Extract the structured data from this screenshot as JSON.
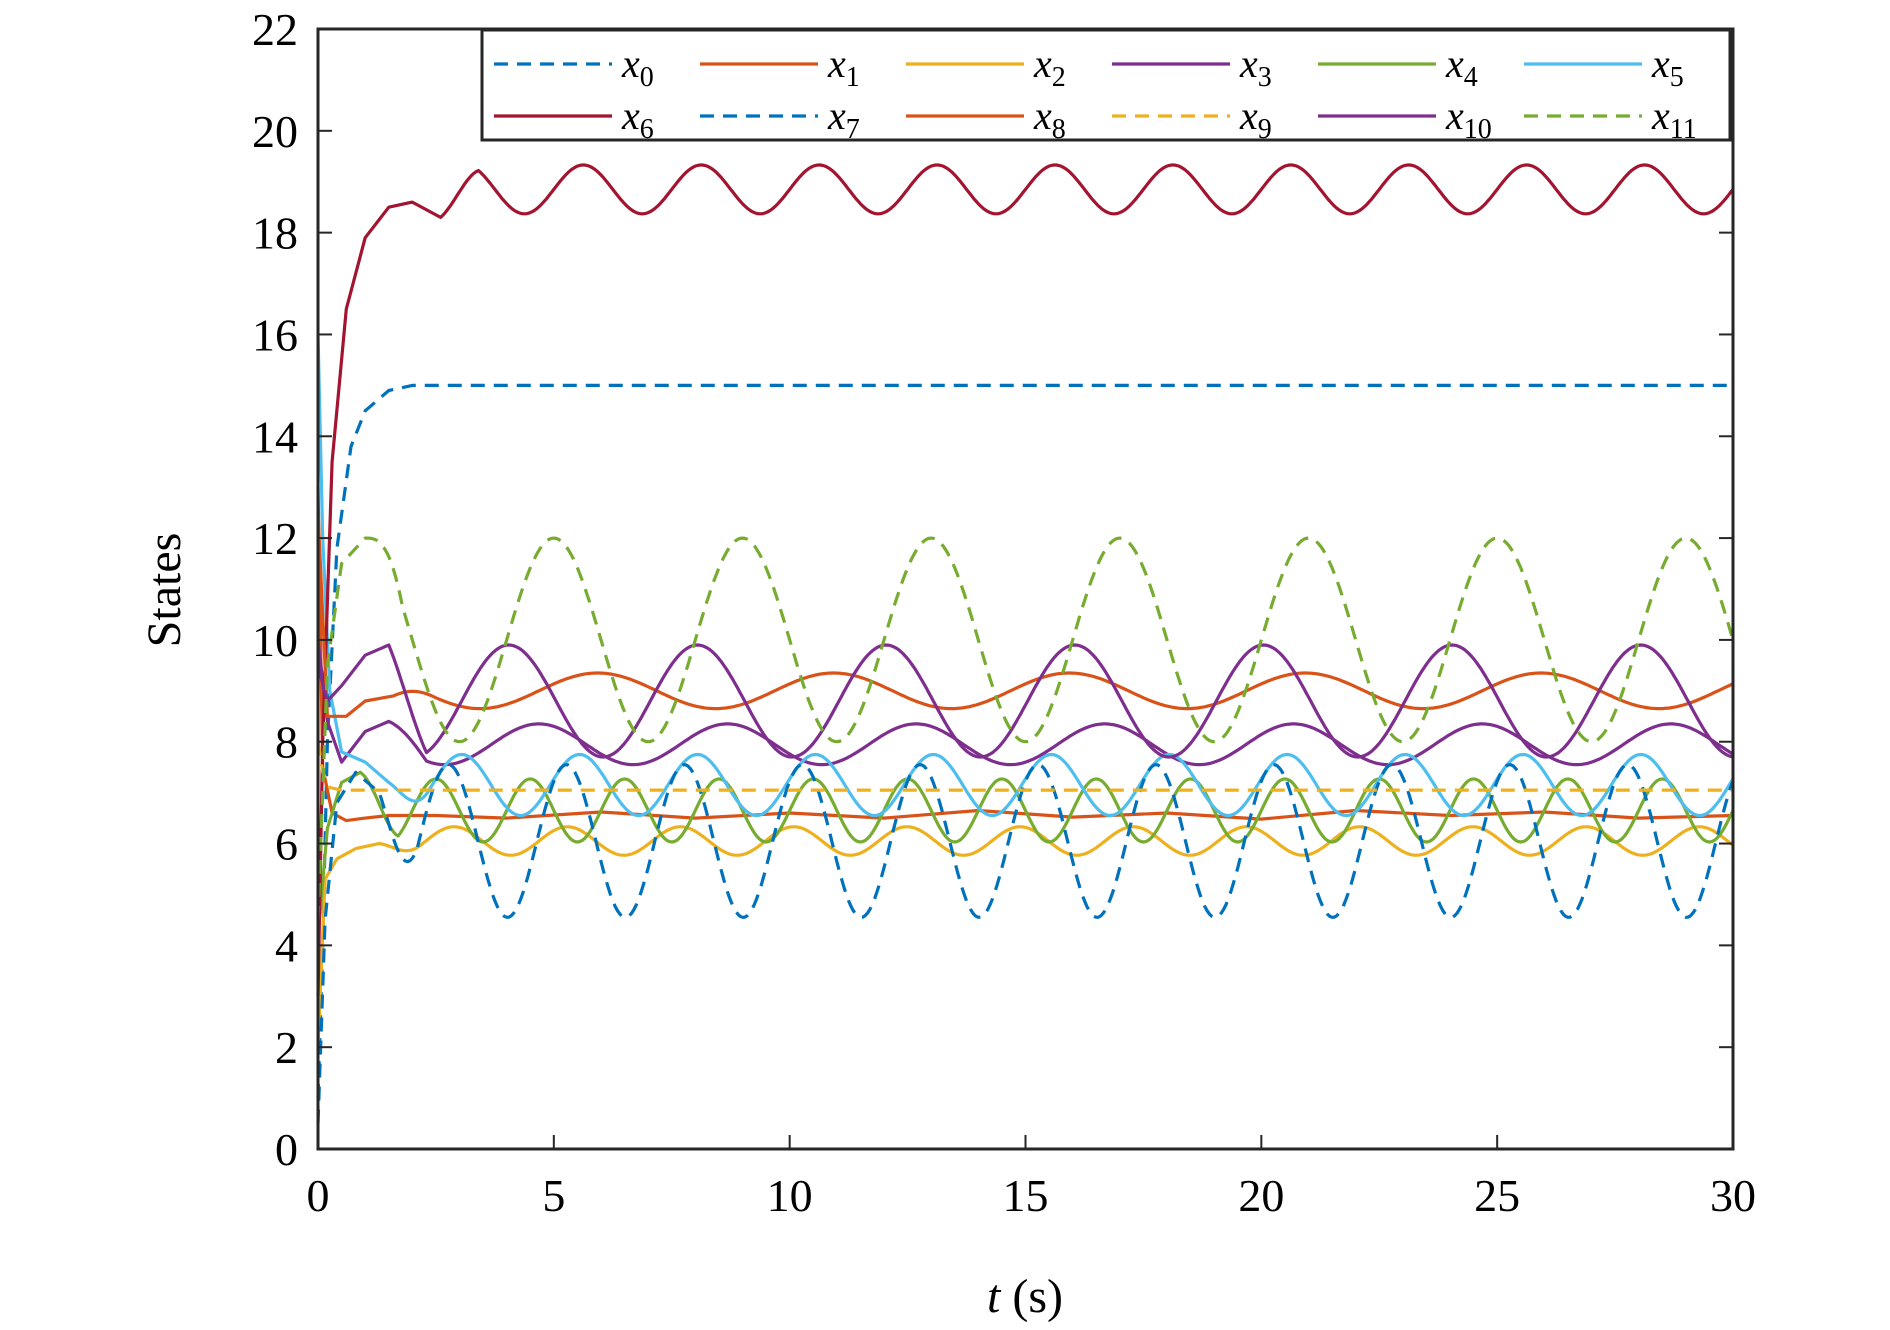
{
  "chart_data": {
    "type": "line",
    "xlabel_var": "t",
    "xlabel_unit": " (s)",
    "ylabel": "States",
    "xlim": [
      0,
      30
    ],
    "ylim": [
      0,
      22
    ],
    "xticks": [
      0,
      5,
      10,
      15,
      20,
      25,
      30
    ],
    "yticks": [
      0,
      2,
      4,
      6,
      8,
      10,
      12,
      14,
      16,
      18,
      20,
      22
    ],
    "grid": false,
    "legend_position": "top-right",
    "legend_columns": 6,
    "series": [
      {
        "name": "x",
        "sub": "0",
        "color": "#0072BD",
        "dash": true,
        "t": [
          0,
          0.1,
          0.2,
          0.4,
          0.7,
          1,
          1.5,
          2,
          3,
          5,
          10,
          20,
          30
        ],
        "y": [
          1.0,
          4.0,
          8.0,
          11.8,
          13.8,
          14.5,
          14.9,
          15.0,
          15.0,
          15.0,
          15.0,
          15.0,
          15.0
        ]
      },
      {
        "name": "x",
        "sub": "1",
        "color": "#D95319",
        "dash": false,
        "t": [
          0,
          0.1,
          0.3,
          0.6,
          1.0,
          1.5,
          2.5,
          4,
          6,
          8,
          10,
          12,
          14,
          16,
          18,
          20,
          22,
          24,
          26,
          28,
          30
        ],
        "y": [
          13.0,
          7.5,
          6.6,
          6.45,
          6.5,
          6.55,
          6.55,
          6.5,
          6.62,
          6.5,
          6.6,
          6.5,
          6.65,
          6.52,
          6.6,
          6.48,
          6.65,
          6.55,
          6.62,
          6.5,
          6.55
        ]
      },
      {
        "name": "x",
        "sub": "2",
        "color": "#EDB120",
        "dash": false,
        "osc": {
          "base": 6.05,
          "amp": 0.28,
          "per": 2.4,
          "ph": 0.3
        },
        "t": [
          0,
          0.15,
          0.4,
          0.8,
          1.3
        ],
        "y": [
          2.0,
          5.3,
          5.7,
          5.9,
          6.0
        ]
      },
      {
        "name": "x",
        "sub": "3",
        "color": "#7E2F8E",
        "dash": false,
        "osc": {
          "base": 7.95,
          "amp": 0.4,
          "per": 4.0,
          "ph": 0.5
        },
        "t": [
          0,
          0.2,
          0.5,
          1.0,
          1.5
        ],
        "y": [
          10.0,
          8.4,
          7.6,
          8.2,
          8.4
        ]
      },
      {
        "name": "x",
        "sub": "4",
        "color": "#77AC30",
        "dash": false,
        "osc": {
          "base": 6.65,
          "amp": 0.62,
          "per": 2.0,
          "ph": 0.0
        },
        "t": [
          0,
          0.2,
          0.5,
          0.9
        ],
        "y": [
          4.2,
          6.3,
          7.2,
          7.4
        ]
      },
      {
        "name": "x",
        "sub": "5",
        "color": "#4DBEEE",
        "dash": false,
        "osc": {
          "base": 7.15,
          "amp": 0.6,
          "per": 2.5,
          "ph": 0.2
        },
        "t": [
          0,
          0.1,
          0.25,
          0.5,
          1.0,
          1.5
        ],
        "y": [
          16.0,
          12.0,
          9.0,
          7.8,
          7.6,
          7.2
        ]
      },
      {
        "name": "x",
        "sub": "6",
        "color": "#A2142F",
        "dash": false,
        "osc": {
          "base": 18.85,
          "amp": 0.48,
          "per": 2.5,
          "ph": 0.0
        },
        "t": [
          0,
          0.1,
          0.3,
          0.6,
          1.0,
          1.5,
          2.0,
          2.6
        ],
        "y": [
          3.0,
          8.0,
          13.5,
          16.5,
          17.9,
          18.5,
          18.6,
          18.3
        ]
      },
      {
        "name": "x",
        "sub": "7",
        "color": "#0072BD",
        "dash": true,
        "osc": {
          "base": 6.05,
          "amp": 1.5,
          "per": 2.5,
          "ph": 0.9
        },
        "t": [
          0,
          0.15,
          0.4,
          0.8,
          1.3
        ],
        "y": [
          0.5,
          4.5,
          6.8,
          7.4,
          7.0
        ]
      },
      {
        "name": "x",
        "sub": "8",
        "color": "#D95319",
        "dash": false,
        "osc": {
          "base": 9.0,
          "amp": 0.35,
          "per": 5.0,
          "ph": 0.4
        },
        "t": [
          0,
          0.2,
          0.6,
          1.0,
          1.6
        ],
        "y": [
          12.5,
          8.5,
          8.5,
          8.8,
          8.9
        ]
      },
      {
        "name": "x",
        "sub": "9",
        "color": "#EDB120",
        "dash": true,
        "t": [
          0,
          0.1,
          0.25,
          0.5,
          1.0,
          30
        ],
        "y": [
          8.0,
          7.4,
          7.1,
          7.05,
          7.05,
          7.05
        ]
      },
      {
        "name": "x",
        "sub": "10",
        "color": "#7E2F8E",
        "dash": false,
        "osc": {
          "base": 8.8,
          "amp": 1.1,
          "per": 4.0,
          "ph": 1.5
        },
        "t": [
          0,
          0.2,
          0.5,
          1.0,
          1.5
        ],
        "y": [
          9.5,
          8.8,
          9.1,
          9.7,
          9.9
        ]
      },
      {
        "name": "x",
        "sub": "11",
        "color": "#77AC30",
        "dash": true,
        "osc": {
          "base": 10.0,
          "amp": 2.0,
          "per": 4.0,
          "ph": 0.0
        },
        "t": [
          0,
          0.2,
          0.5,
          1.0
        ],
        "y": [
          4.5,
          9.5,
          11.5,
          12.0
        ]
      }
    ]
  }
}
